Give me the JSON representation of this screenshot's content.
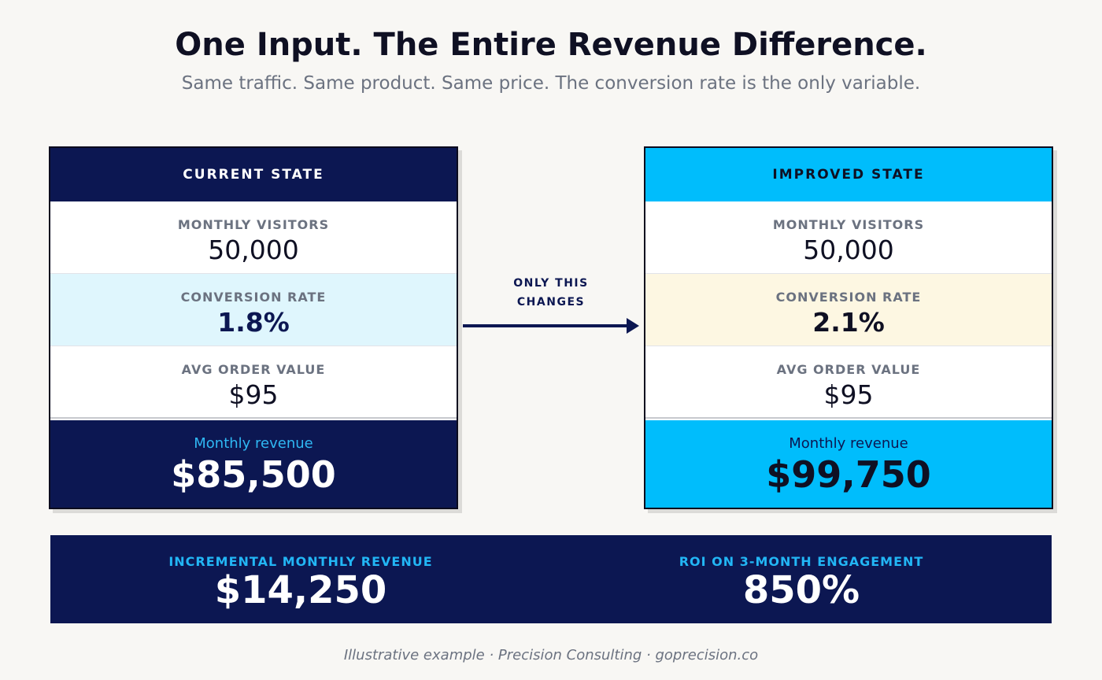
{
  "header": {
    "title": "One Input. The Entire Revenue Difference.",
    "subtitle": "Same traffic. Same product. Same price. The conversion rate is the only variable."
  },
  "current": {
    "title": "CURRENT STATE",
    "visitors_label": "MONTHLY VISITORS",
    "visitors": "50,000",
    "conversion_label": "CONVERSION RATE",
    "conversion": "1.8%",
    "aov_label": "AVG ORDER VALUE",
    "aov": "$95",
    "revenue_label": "Monthly revenue",
    "revenue": "$85,500"
  },
  "improved": {
    "title": "IMPROVED STATE",
    "visitors_label": "MONTHLY VISITORS",
    "visitors": "50,000",
    "conversion_label": "CONVERSION RATE",
    "conversion": "2.1%",
    "aov_label": "AVG ORDER VALUE",
    "aov": "$95",
    "revenue_label": "Monthly revenue",
    "revenue": "$99,750"
  },
  "arrow": {
    "line1": "ONLY THIS",
    "line2": "CHANGES"
  },
  "summary": {
    "incremental_label": "INCREMENTAL MONTHLY REVENUE",
    "incremental": "$14,250",
    "roi_label": "ROI ON 3-MONTH ENGAGEMENT",
    "roi": "850%"
  },
  "footer": "Illustrative example · Precision Consulting · goprecision.co",
  "colors": {
    "navy": "#0c1752",
    "cyan": "#00bdfc",
    "background": "#f8f7f4"
  }
}
